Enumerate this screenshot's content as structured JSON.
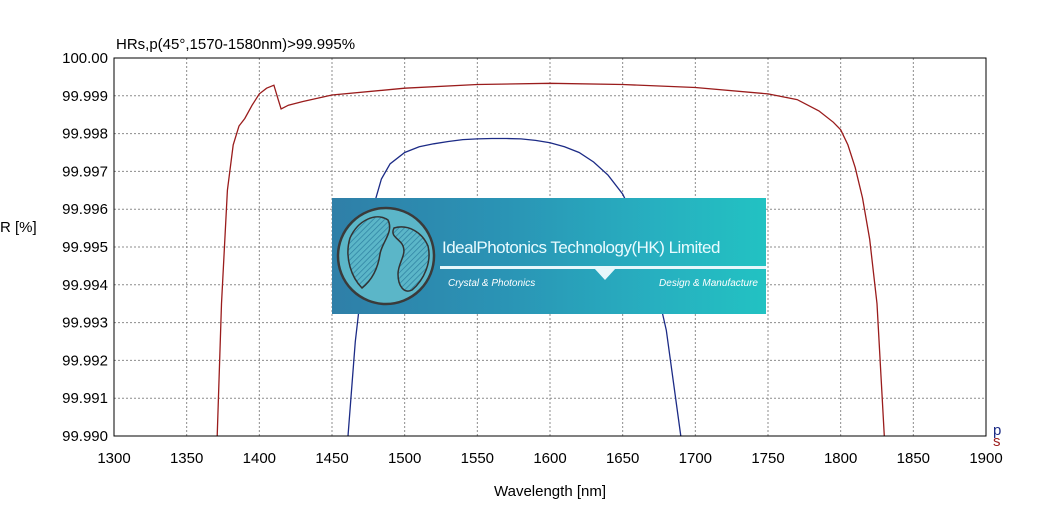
{
  "chart_data": {
    "type": "line",
    "title": "HRs,p(45°,1570-1580nm)>99.995%",
    "xlabel": "Wavelength [nm]",
    "ylabel": "R [%]",
    "xlim": [
      1300,
      1900
    ],
    "ylim": [
      99.99,
      100.0
    ],
    "x_ticks": [
      "1300",
      "1350",
      "1400",
      "1450",
      "1500",
      "1550",
      "1600",
      "1650",
      "1700",
      "1750",
      "1800",
      "1850",
      "1900"
    ],
    "y_ticks": [
      "100.00",
      "99.999",
      "99.998",
      "99.997",
      "99.996",
      "99.995",
      "99.994",
      "99.993",
      "99.992",
      "99.991",
      "99.990"
    ],
    "grid": true,
    "legend_entries": [
      "p",
      "s"
    ],
    "series": [
      {
        "name": "p",
        "color": "#1c2b86",
        "x": [
          1461,
          1466,
          1472,
          1478,
          1484,
          1490,
          1500,
          1510,
          1520,
          1530,
          1540,
          1550,
          1560,
          1570,
          1580,
          1590,
          1600,
          1610,
          1620,
          1630,
          1640,
          1650,
          1660,
          1670,
          1680,
          1690
        ],
        "y": [
          99.99,
          99.9925,
          99.9945,
          99.996,
          99.9968,
          99.9972,
          99.9975,
          99.99765,
          99.99773,
          99.99779,
          99.99784,
          99.99786,
          99.99787,
          99.99787,
          99.99786,
          99.99782,
          99.99776,
          99.99765,
          99.9975,
          99.99725,
          99.9969,
          99.9964,
          99.9956,
          99.9945,
          99.9928,
          99.99
        ]
      },
      {
        "name": "s",
        "color": "#9a1c1c",
        "x": [
          1371,
          1374,
          1378,
          1382,
          1386,
          1390,
          1395,
          1400,
          1405,
          1410,
          1413,
          1415,
          1420,
          1430,
          1450,
          1500,
          1550,
          1600,
          1650,
          1700,
          1750,
          1770,
          1785,
          1795,
          1800,
          1805,
          1810,
          1815,
          1820,
          1825,
          1830
        ],
        "y": [
          99.99,
          99.9935,
          99.9965,
          99.9977,
          99.9982,
          99.9984,
          99.99875,
          99.99905,
          99.9992,
          99.99928,
          99.9989,
          99.99865,
          99.99875,
          99.99885,
          99.99902,
          99.9992,
          99.9993,
          99.99933,
          99.9993,
          99.99922,
          99.99905,
          99.9989,
          99.9986,
          99.9983,
          99.9981,
          99.9977,
          99.9971,
          99.9963,
          99.9952,
          99.9935,
          99.99
        ]
      }
    ]
  },
  "watermark": {
    "company": "IdealPhotonics Technology(HK) Limited",
    "tag_left": "Crystal & Photonics",
    "tag_right": "Design & Manufacture"
  }
}
